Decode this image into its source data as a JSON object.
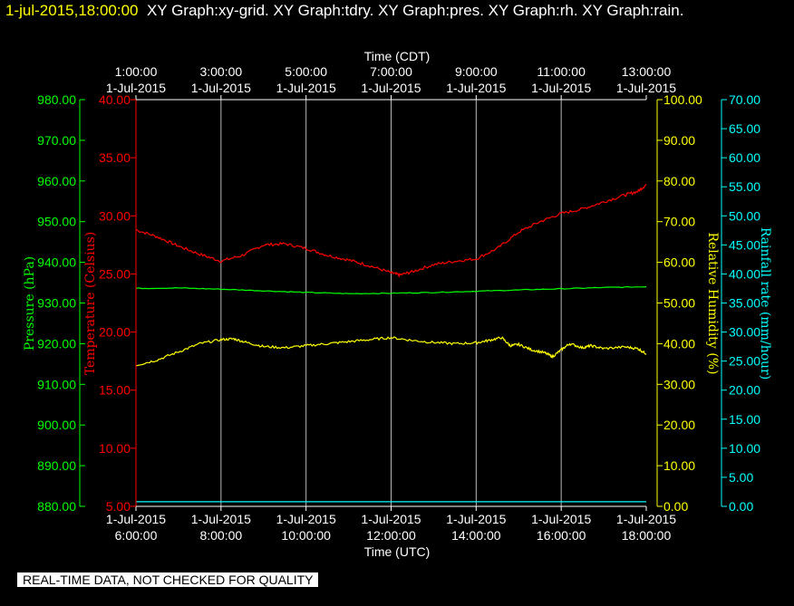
{
  "header": {
    "timestamp": "1-jul-2015,18:00:00",
    "graphs": "XY Graph:xy-grid.  XY Graph:tdry.  XY Graph:pres.  XY Graph:rh.  XY Graph:rain."
  },
  "footer": {
    "notice": "REAL-TIME DATA, NOT CHECKED FOR QUALITY"
  },
  "chart_data": {
    "type": "line",
    "x_axis_top": {
      "label": "Time (CDT)",
      "ticks": [
        {
          "time": "1:00:00",
          "date": "1-Jul-2015"
        },
        {
          "time": "3:00:00",
          "date": "1-Jul-2015"
        },
        {
          "time": "5:00:00",
          "date": "1-Jul-2015"
        },
        {
          "time": "7:00:00",
          "date": "1-Jul-2015"
        },
        {
          "time": "9:00:00",
          "date": "1-Jul-2015"
        },
        {
          "time": "11:00:00",
          "date": "1-Jul-2015"
        },
        {
          "time": "13:00:00",
          "date": "1-Jul-2015"
        }
      ]
    },
    "x_axis_bottom": {
      "label": "Time (UTC)",
      "ticks": [
        {
          "date": "1-Jul-2015",
          "time": "6:00:00"
        },
        {
          "date": "1-Jul-2015",
          "time": "8:00:00"
        },
        {
          "date": "1-Jul-2015",
          "time": "10:00:00"
        },
        {
          "date": "1-Jul-2015",
          "time": "12:00:00"
        },
        {
          "date": "1-Jul-2015",
          "time": "14:00:00"
        },
        {
          "date": "1-Jul-2015",
          "time": "16:00:00"
        },
        {
          "date": "1-Jul-2015",
          "time": "18:00:00"
        }
      ]
    },
    "x_hours_utc": [
      6,
      18
    ],
    "grid": true,
    "axes": {
      "pressure": {
        "label": "Pressure (hPa)",
        "color": "#00ff00",
        "range": [
          880,
          980
        ],
        "ticks": [
          "980.00",
          "970.00",
          "960.00",
          "950.00",
          "940.00",
          "930.00",
          "920.00",
          "910.00",
          "900.00",
          "890.00",
          "880.00"
        ]
      },
      "temperature": {
        "label": "Temperature (Celsius)",
        "color": "#ff0000",
        "range": [
          5,
          40
        ],
        "ticks": [
          "40.00",
          "35.00",
          "30.00",
          "25.00",
          "20.00",
          "15.00",
          "10.00",
          "5.00"
        ]
      },
      "rh": {
        "label": "Relative Humidity (%)",
        "color": "#ffff00",
        "range": [
          0,
          100
        ],
        "ticks": [
          "100.00",
          "90.00",
          "80.00",
          "70.00",
          "60.00",
          "50.00",
          "40.00",
          "30.00",
          "20.00",
          "10.00",
          "0.00"
        ]
      },
      "rain": {
        "label": "Rainfall rate (mm/hour)",
        "color": "#00ffff",
        "range": [
          0,
          70
        ],
        "ticks": [
          "70.00",
          "65.00",
          "60.00",
          "55.00",
          "50.00",
          "45.00",
          "40.00",
          "35.00",
          "30.00",
          "25.00",
          "20.00",
          "15.00",
          "10.00",
          "5.00",
          "0.00"
        ]
      }
    },
    "series": [
      {
        "name": "tdry",
        "axis": "temperature",
        "color": "#ff0000",
        "points": [
          [
            6,
            28.8
          ],
          [
            6.5,
            28.2
          ],
          [
            7,
            27.4
          ],
          [
            7.5,
            26.7
          ],
          [
            8,
            26.1
          ],
          [
            8.5,
            26.6
          ],
          [
            9,
            27.5
          ],
          [
            9.5,
            27.6
          ],
          [
            10,
            27.2
          ],
          [
            10.5,
            26.6
          ],
          [
            11,
            26.2
          ],
          [
            11.5,
            25.7
          ],
          [
            12,
            25.1
          ],
          [
            12.2,
            24.9
          ],
          [
            12.5,
            25.2
          ],
          [
            13,
            25.8
          ],
          [
            13.5,
            26.1
          ],
          [
            14,
            26.3
          ],
          [
            14.5,
            27.2
          ],
          [
            15,
            28.6
          ],
          [
            15.5,
            29.5
          ],
          [
            16,
            30.2
          ],
          [
            16.5,
            30.6
          ],
          [
            17,
            31.2
          ],
          [
            17.5,
            31.8
          ],
          [
            17.8,
            32.1
          ],
          [
            18,
            32.7
          ]
        ]
      },
      {
        "name": "pres",
        "axis": "pressure",
        "color": "#00ff00",
        "points": [
          [
            6,
            933.6
          ],
          [
            7,
            933.7
          ],
          [
            8,
            933.4
          ],
          [
            9,
            933.0
          ],
          [
            10,
            932.6
          ],
          [
            11,
            932.3
          ],
          [
            12,
            932.4
          ],
          [
            13,
            932.6
          ],
          [
            14,
            932.9
          ],
          [
            15,
            933.2
          ],
          [
            16,
            933.5
          ],
          [
            17,
            933.8
          ],
          [
            18,
            934.0
          ]
        ]
      },
      {
        "name": "rh",
        "axis": "rh",
        "color": "#ffff00",
        "points": [
          [
            6,
            34.7
          ],
          [
            6.5,
            36.0
          ],
          [
            7,
            38.0
          ],
          [
            7.5,
            40.0
          ],
          [
            8,
            41.0
          ],
          [
            8.3,
            41.2
          ],
          [
            8.6,
            40.3
          ],
          [
            9,
            39.3
          ],
          [
            9.5,
            39.0
          ],
          [
            10,
            39.5
          ],
          [
            10.5,
            40.0
          ],
          [
            11,
            40.5
          ],
          [
            11.5,
            41.0
          ],
          [
            12,
            41.5
          ],
          [
            12.5,
            40.8
          ],
          [
            13,
            40.3
          ],
          [
            13.5,
            40.0
          ],
          [
            14,
            40.2
          ],
          [
            14.3,
            40.8
          ],
          [
            14.6,
            41.5
          ],
          [
            14.8,
            39.5
          ],
          [
            15,
            39.8
          ],
          [
            15.3,
            38.5
          ],
          [
            15.6,
            37.8
          ],
          [
            15.8,
            36.8
          ],
          [
            16,
            38.5
          ],
          [
            16.2,
            40.0
          ],
          [
            16.5,
            39.0
          ],
          [
            16.7,
            39.5
          ],
          [
            17,
            38.8
          ],
          [
            17.5,
            39.2
          ],
          [
            17.8,
            38.8
          ],
          [
            18,
            37.5
          ]
        ]
      },
      {
        "name": "rain",
        "axis": "rain",
        "color": "#00ffff",
        "points": [
          [
            6,
            0.8
          ],
          [
            18,
            0.8
          ]
        ]
      }
    ]
  }
}
